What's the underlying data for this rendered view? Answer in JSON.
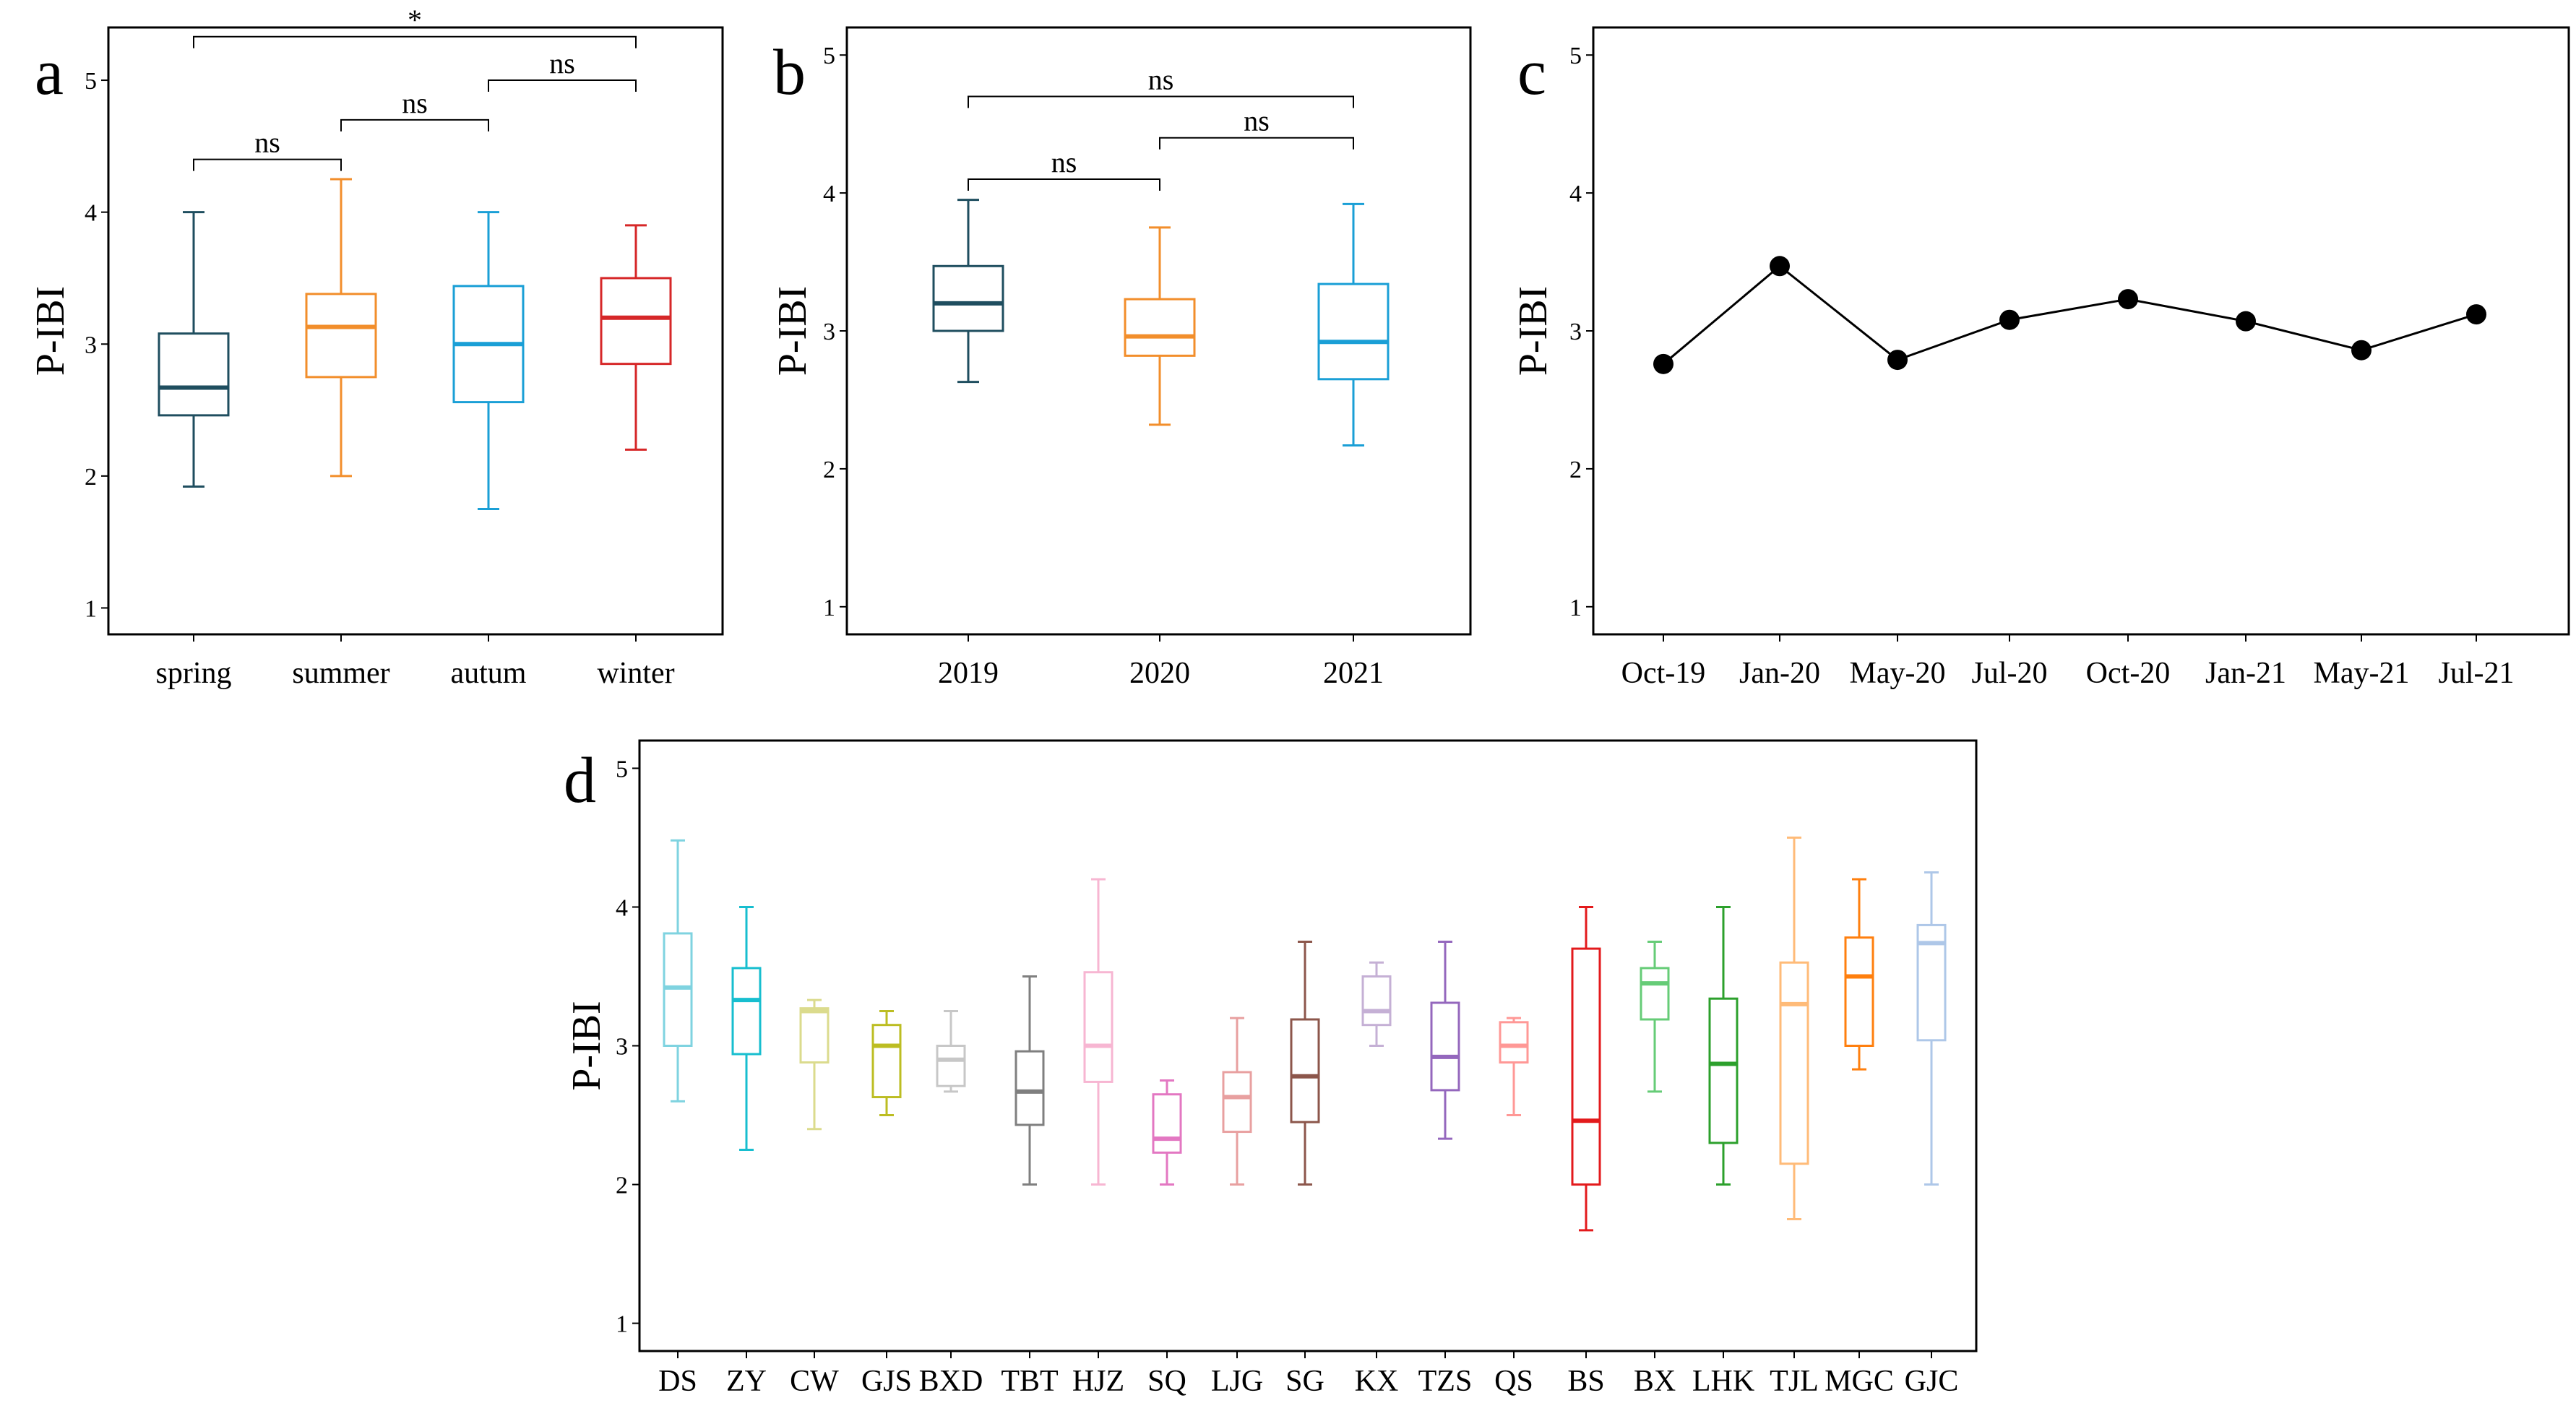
{
  "chart_data": [
    {
      "panel": "a",
      "type": "box",
      "ylabel": "P-IBI",
      "ylim": [
        0.8,
        5.4
      ],
      "yticks": [
        "1",
        "2",
        "3",
        "4",
        "5"
      ],
      "categories": [
        "spring",
        "summer",
        "autum",
        "winter"
      ],
      "colors": [
        "#1f4e5f",
        "#f28e2b",
        "#1a9fd6",
        "#d62728"
      ],
      "boxes": [
        {
          "min": 1.92,
          "q1": 2.46,
          "median": 2.67,
          "q3": 3.08,
          "max": 4.0
        },
        {
          "min": 2.0,
          "q1": 2.75,
          "median": 3.13,
          "q3": 3.38,
          "max": 4.25
        },
        {
          "min": 1.75,
          "q1": 2.56,
          "median": 3.0,
          "q3": 3.44,
          "max": 4.0
        },
        {
          "min": 2.2,
          "q1": 2.85,
          "median": 3.2,
          "q3": 3.5,
          "max": 3.9
        }
      ],
      "comparisons": [
        {
          "from": 0,
          "to": 3,
          "y": 5.33,
          "label": "*"
        },
        {
          "from": 0,
          "to": 1,
          "y": 4.4,
          "label": "ns"
        },
        {
          "from": 1,
          "to": 2,
          "y": 4.7,
          "label": "ns"
        },
        {
          "from": 2,
          "to": 3,
          "y": 5.0,
          "label": "ns"
        }
      ]
    },
    {
      "panel": "b",
      "type": "box",
      "ylabel": "P-IBI",
      "ylim": [
        0.8,
        5.2
      ],
      "yticks": [
        "1",
        "2",
        "3",
        "4",
        "5"
      ],
      "categories": [
        "2019",
        "2020",
        "2021"
      ],
      "colors": [
        "#1f4e5f",
        "#f28e2b",
        "#1a9fd6"
      ],
      "boxes": [
        {
          "min": 2.63,
          "q1": 3.0,
          "median": 3.2,
          "q3": 3.47,
          "max": 3.95
        },
        {
          "min": 2.32,
          "q1": 2.82,
          "median": 2.96,
          "q3": 3.23,
          "max": 3.75
        },
        {
          "min": 2.17,
          "q1": 2.65,
          "median": 2.92,
          "q3": 3.34,
          "max": 3.92
        }
      ],
      "comparisons": [
        {
          "from": 0,
          "to": 2,
          "y": 4.7,
          "label": "ns"
        },
        {
          "from": 0,
          "to": 1,
          "y": 4.1,
          "label": "ns"
        },
        {
          "from": 1,
          "to": 2,
          "y": 4.4,
          "label": "ns"
        }
      ]
    },
    {
      "panel": "c",
      "type": "line",
      "ylabel": "P-IBI",
      "ylim": [
        0.8,
        5.2
      ],
      "yticks": [
        "1",
        "2",
        "3",
        "4",
        "5"
      ],
      "categories": [
        "Oct-19",
        "Jan-20",
        "May-20",
        "Jul-20",
        "Oct-20",
        "Jan-21",
        "May-21",
        "Jul-21"
      ],
      "values": [
        2.76,
        3.47,
        2.79,
        3.08,
        3.23,
        3.07,
        2.86,
        3.12
      ]
    },
    {
      "panel": "d",
      "type": "box",
      "ylabel": "P-IBI",
      "ylim": [
        0.8,
        5.2
      ],
      "yticks": [
        "1",
        "2",
        "3",
        "4",
        "5"
      ],
      "categories": [
        "DS",
        "ZY",
        "CW",
        "GJS",
        "BXD",
        "TBT",
        "HJZ",
        "SQ",
        "LJG",
        "SG",
        "KX",
        "TZS",
        "QS",
        "BS",
        "BX",
        "LHK",
        "TJL",
        "MGC",
        "GJC"
      ],
      "colors": [
        "#7fd3e0",
        "#17becf",
        "#dbdb8d",
        "#bcbd22",
        "#c7c7c7",
        "#7f7f7f",
        "#f7b6d2",
        "#e377c2",
        "#e8a0a0",
        "#8c564b",
        "#c5b0d5",
        "#9467bd",
        "#ff9896",
        "#e31a1c",
        "#66cc77",
        "#2ca02c",
        "#ffbb78",
        "#ff7f0e",
        "#aec7e8"
      ],
      "boxes": [
        {
          "min": 2.6,
          "q1": 3.0,
          "median": 3.42,
          "q3": 3.81,
          "max": 4.48
        },
        {
          "min": 2.25,
          "q1": 2.94,
          "median": 3.33,
          "q3": 3.56,
          "max": 4.0
        },
        {
          "min": 2.4,
          "q1": 2.88,
          "median": 3.25,
          "q3": 3.27,
          "max": 3.33
        },
        {
          "min": 2.5,
          "q1": 2.63,
          "median": 3.0,
          "q3": 3.15,
          "max": 3.25
        },
        {
          "min": 2.67,
          "q1": 2.71,
          "median": 2.9,
          "q3": 3.0,
          "max": 3.25
        },
        {
          "min": 2.0,
          "q1": 2.43,
          "median": 2.67,
          "q3": 2.96,
          "max": 3.5
        },
        {
          "min": 2.0,
          "q1": 2.74,
          "median": 3.0,
          "q3": 3.53,
          "max": 4.2
        },
        {
          "min": 2.0,
          "q1": 2.23,
          "median": 2.33,
          "q3": 2.65,
          "max": 2.75
        },
        {
          "min": 2.0,
          "q1": 2.38,
          "median": 2.63,
          "q3": 2.81,
          "max": 3.2
        },
        {
          "min": 2.0,
          "q1": 2.45,
          "median": 2.78,
          "q3": 3.19,
          "max": 3.75
        },
        {
          "min": 3.0,
          "q1": 3.15,
          "median": 3.25,
          "q3": 3.5,
          "max": 3.6
        },
        {
          "min": 2.33,
          "q1": 2.68,
          "median": 2.92,
          "q3": 3.31,
          "max": 3.75
        },
        {
          "min": 2.5,
          "q1": 2.88,
          "median": 3.0,
          "q3": 3.17,
          "max": 3.2
        },
        {
          "min": 1.67,
          "q1": 2.0,
          "median": 2.46,
          "q3": 3.7,
          "max": 4.0
        },
        {
          "min": 2.67,
          "q1": 3.19,
          "median": 3.45,
          "q3": 3.56,
          "max": 3.75
        },
        {
          "min": 2.0,
          "q1": 2.3,
          "median": 2.87,
          "q3": 3.34,
          "max": 4.0
        },
        {
          "min": 1.75,
          "q1": 2.15,
          "median": 3.3,
          "q3": 3.6,
          "max": 4.5
        },
        {
          "min": 2.83,
          "q1": 3.0,
          "median": 3.5,
          "q3": 3.78,
          "max": 4.2
        },
        {
          "min": 2.0,
          "q1": 3.04,
          "median": 3.74,
          "q3": 3.87,
          "max": 4.25
        }
      ]
    }
  ]
}
